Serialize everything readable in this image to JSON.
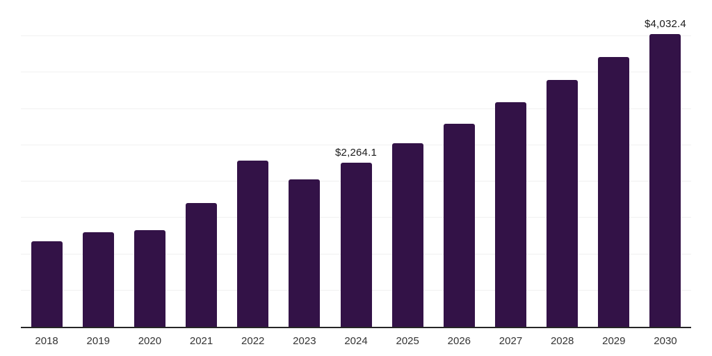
{
  "chart_data": {
    "type": "bar",
    "title": "",
    "xlabel": "",
    "ylabel": "",
    "categories": [
      "2018",
      "2019",
      "2020",
      "2021",
      "2022",
      "2023",
      "2024",
      "2025",
      "2026",
      "2027",
      "2028",
      "2029",
      "2030"
    ],
    "values": [
      1175,
      1300,
      1330,
      1700,
      2285,
      2030,
      2264.1,
      2525,
      2800,
      3095,
      3400,
      3715,
      4032.4
    ],
    "data_labels": [
      {
        "category": "2024",
        "text": "$2,264.1"
      },
      {
        "category": "2030",
        "text": "$4,032.4"
      }
    ],
    "ylim": [
      0,
      4500
    ],
    "gridline_step": 500,
    "grid": "horizontal-only",
    "legend_position": "none",
    "colors": {
      "bar": "#331247",
      "gridline": "#f0f0f0",
      "axis_line": "#262626",
      "tick_label": "#333333",
      "data_label": "#1a1a1a",
      "background": "#ffffff"
    }
  }
}
